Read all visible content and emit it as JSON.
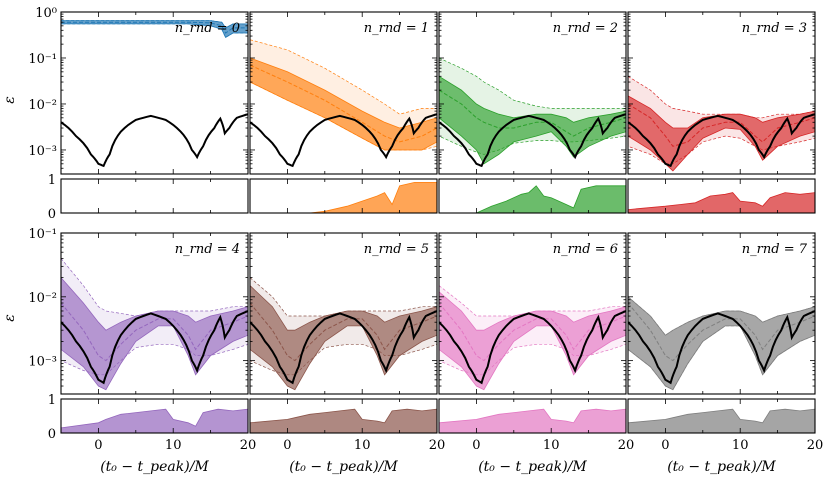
{
  "figure": {
    "ylabel_main": "ε",
    "xlabel": "(t₀ − t_peak)/M",
    "x_tick_labels": [
      "0",
      "10",
      "20"
    ],
    "top_row_y_ticks": [
      "10⁰",
      "10⁻¹",
      "10⁻²",
      "10⁻³"
    ],
    "bottom_row_y_ticks": [
      "10⁻¹",
      "10⁻²",
      "10⁻³"
    ],
    "sub_y_ticks": [
      "1",
      "0"
    ]
  },
  "chart_data": {
    "type": "line",
    "x_range": [
      -5,
      20
    ],
    "y_scale": "log",
    "top_row_ylim": [
      0.0003,
      1
    ],
    "bottom_row_ylim": [
      0.0003,
      0.1
    ],
    "sub_ylim": [
      0,
      1
    ],
    "reference_curve": {
      "name": "black",
      "x": [
        -5,
        -3,
        -1,
        0,
        0.7,
        1.5,
        3,
        5,
        7,
        9,
        11,
        12.5,
        13.2,
        14,
        15.5,
        16.3,
        16.9,
        17.5,
        18.5,
        20
      ],
      "y": [
        0.004,
        0.002,
        0.0008,
        0.0005,
        0.00045,
        0.0008,
        0.0025,
        0.0045,
        0.0055,
        0.0045,
        0.0025,
        0.001,
        0.0007,
        0.0012,
        0.003,
        0.0048,
        0.0023,
        0.003,
        0.005,
        0.006
      ]
    },
    "panels": [
      {
        "label": "n_rnd = 0",
        "color": "#1f77b4",
        "x": [
          -5,
          -2,
          3,
          8,
          12,
          15,
          16.5,
          17,
          18,
          20
        ],
        "median": [
          0.6,
          0.6,
          0.6,
          0.6,
          0.6,
          0.58,
          0.5,
          0.35,
          0.45,
          0.45
        ],
        "band_low": [
          0.55,
          0.55,
          0.55,
          0.55,
          0.55,
          0.5,
          0.42,
          0.28,
          0.35,
          0.35
        ],
        "band_high": [
          0.65,
          0.65,
          0.65,
          0.65,
          0.65,
          0.65,
          0.6,
          0.45,
          0.55,
          0.55
        ],
        "outer_low": [
          0.55,
          0.55,
          0.55,
          0.55,
          0.55,
          0.5,
          0.42,
          0.28,
          0.35,
          0.35
        ],
        "outer_high": [
          0.65,
          0.65,
          0.65,
          0.65,
          0.65,
          0.65,
          0.6,
          0.45,
          0.55,
          0.55
        ],
        "fraction_x": [],
        "fraction": []
      },
      {
        "label": "n_rnd = 1",
        "color": "#ff7f0e",
        "x": [
          -5,
          0,
          5,
          10,
          13,
          15,
          18,
          20
        ],
        "median": [
          0.07,
          0.03,
          0.012,
          0.004,
          0.002,
          0.0015,
          0.002,
          0.003
        ],
        "band_low": [
          0.03,
          0.012,
          0.005,
          0.0018,
          0.001,
          0.001,
          0.001,
          0.0015
        ],
        "band_high": [
          0.1,
          0.05,
          0.02,
          0.007,
          0.004,
          0.003,
          0.004,
          0.005
        ],
        "outer_low": [
          0.03,
          0.012,
          0.005,
          0.0018,
          0.001,
          0.001,
          0.001,
          0.0012
        ],
        "outer_high": [
          0.25,
          0.15,
          0.06,
          0.02,
          0.01,
          0.006,
          0.008,
          0.008
        ],
        "fraction_x": [
          -5,
          3,
          5,
          8,
          10,
          12,
          13,
          14,
          15,
          17,
          18,
          20
        ],
        "fraction": [
          0,
          0,
          0.05,
          0.2,
          0.35,
          0.5,
          0.6,
          0.25,
          0.8,
          0.9,
          0.9,
          0.9
        ]
      },
      {
        "label": "n_rnd = 2",
        "color": "#2ca02c",
        "x": [
          -5,
          -2,
          0,
          1,
          3,
          5,
          8,
          10,
          12,
          13,
          15,
          18,
          20
        ],
        "median": [
          0.02,
          0.01,
          0.005,
          0.004,
          0.003,
          0.003,
          0.004,
          0.004,
          0.0025,
          0.002,
          0.003,
          0.004,
          0.005
        ],
        "band_low": [
          0.005,
          0.002,
          0.001,
          0.0005,
          0.0008,
          0.0015,
          0.002,
          0.0025,
          0.0012,
          0.0007,
          0.0012,
          0.002,
          0.0025
        ],
        "band_high": [
          0.04,
          0.02,
          0.01,
          0.008,
          0.006,
          0.005,
          0.006,
          0.006,
          0.005,
          0.004,
          0.005,
          0.006,
          0.007
        ],
        "outer_low": [
          0.002,
          0.0012,
          0.0009,
          0.0008,
          0.001,
          0.0014,
          0.0016,
          0.0016,
          0.0015,
          0.0015,
          0.0016,
          0.0018,
          0.002
        ],
        "outer_high": [
          0.1,
          0.06,
          0.04,
          0.03,
          0.02,
          0.012,
          0.009,
          0.008,
          0.008,
          0.008,
          0.008,
          0.008,
          0.008
        ],
        "fraction_x": [
          -5,
          0,
          2,
          4,
          6,
          7,
          8,
          9,
          10,
          12,
          13,
          14,
          16,
          18,
          20
        ],
        "fraction": [
          0,
          0,
          0.2,
          0.35,
          0.55,
          0.6,
          0.8,
          0.5,
          0.45,
          0.25,
          0.15,
          0.7,
          0.8,
          0.8,
          0.8
        ]
      },
      {
        "label": "n_rnd = 3",
        "color": "#d62728",
        "x": [
          -5,
          -2,
          0,
          1,
          3,
          5,
          8,
          10,
          12,
          13,
          15,
          18,
          20
        ],
        "median": [
          0.01,
          0.005,
          0.002,
          0.0012,
          0.0015,
          0.003,
          0.004,
          0.004,
          0.002,
          0.0015,
          0.003,
          0.004,
          0.005
        ],
        "band_low": [
          0.002,
          0.001,
          0.0005,
          0.00035,
          0.0008,
          0.0018,
          0.003,
          0.0028,
          0.0012,
          0.0006,
          0.0012,
          0.002,
          0.0025
        ],
        "band_high": [
          0.015,
          0.008,
          0.004,
          0.003,
          0.003,
          0.005,
          0.006,
          0.006,
          0.005,
          0.004,
          0.005,
          0.006,
          0.007
        ],
        "outer_low": [
          0.0012,
          0.0008,
          0.0005,
          0.0005,
          0.0008,
          0.0015,
          0.002,
          0.0018,
          0.0012,
          0.001,
          0.0012,
          0.0015,
          0.0018
        ],
        "outer_high": [
          0.04,
          0.02,
          0.01,
          0.008,
          0.007,
          0.006,
          0.006,
          0.006,
          0.005,
          0.005,
          0.006,
          0.006,
          0.007
        ],
        "fraction_x": [
          -5,
          0,
          2,
          4,
          5,
          6,
          8,
          9,
          10,
          12,
          13,
          14,
          16,
          18,
          20
        ],
        "fraction": [
          0.1,
          0.2,
          0.25,
          0.3,
          0.4,
          0.5,
          0.55,
          0.6,
          0.35,
          0.3,
          0.2,
          0.45,
          0.6,
          0.55,
          0.6
        ]
      },
      {
        "label": "n_rnd = 4",
        "color": "#9467bd",
        "x": [
          -5,
          -2,
          0,
          1,
          3,
          5,
          8,
          10,
          12,
          13,
          15,
          18,
          20
        ],
        "median": [
          0.008,
          0.003,
          0.0012,
          0.001,
          0.0018,
          0.003,
          0.0045,
          0.0045,
          0.0025,
          0.0015,
          0.003,
          0.004,
          0.005
        ],
        "band_low": [
          0.0015,
          0.0008,
          0.0004,
          0.00035,
          0.0009,
          0.002,
          0.0035,
          0.0035,
          0.0012,
          0.0006,
          0.0012,
          0.002,
          0.0025
        ],
        "band_high": [
          0.02,
          0.008,
          0.004,
          0.003,
          0.004,
          0.005,
          0.006,
          0.006,
          0.005,
          0.004,
          0.005,
          0.006,
          0.007
        ],
        "outer_low": [
          0.001,
          0.0007,
          0.0006,
          0.0006,
          0.001,
          0.0016,
          0.0018,
          0.0018,
          0.0015,
          0.0012,
          0.0012,
          0.0015,
          0.0018
        ],
        "outer_high": [
          0.04,
          0.015,
          0.007,
          0.006,
          0.0055,
          0.005,
          0.006,
          0.006,
          0.006,
          0.006,
          0.006,
          0.007,
          0.007
        ],
        "fraction_x": [
          -5,
          0,
          1,
          3,
          5,
          7,
          9,
          10,
          12,
          13,
          14,
          16,
          18,
          20
        ],
        "fraction": [
          0.15,
          0.3,
          0.4,
          0.55,
          0.6,
          0.65,
          0.7,
          0.4,
          0.3,
          0.2,
          0.6,
          0.7,
          0.65,
          0.7
        ]
      },
      {
        "label": "n_rnd = 5",
        "color": "#8c564b",
        "x": [
          -5,
          -2,
          0,
          1,
          3,
          5,
          8,
          10,
          12,
          13,
          15,
          18,
          20
        ],
        "median": [
          0.008,
          0.003,
          0.0012,
          0.001,
          0.0018,
          0.003,
          0.0045,
          0.0045,
          0.0025,
          0.0015,
          0.003,
          0.004,
          0.005
        ],
        "band_low": [
          0.0015,
          0.0008,
          0.0004,
          0.00035,
          0.0009,
          0.002,
          0.0035,
          0.0035,
          0.0012,
          0.0006,
          0.0012,
          0.002,
          0.0025
        ],
        "band_high": [
          0.015,
          0.007,
          0.003,
          0.003,
          0.004,
          0.005,
          0.006,
          0.006,
          0.005,
          0.004,
          0.005,
          0.006,
          0.007
        ],
        "outer_low": [
          0.001,
          0.0007,
          0.0006,
          0.0006,
          0.001,
          0.0016,
          0.0018,
          0.0018,
          0.0015,
          0.0012,
          0.0012,
          0.0015,
          0.0018
        ],
        "outer_high": [
          0.02,
          0.01,
          0.005,
          0.005,
          0.005,
          0.005,
          0.006,
          0.006,
          0.006,
          0.006,
          0.006,
          0.007,
          0.007
        ],
        "fraction_x": [
          -5,
          0,
          1,
          3,
          5,
          7,
          9,
          10,
          12,
          13,
          14,
          16,
          18,
          20
        ],
        "fraction": [
          0.3,
          0.4,
          0.45,
          0.55,
          0.6,
          0.65,
          0.7,
          0.4,
          0.35,
          0.3,
          0.65,
          0.7,
          0.65,
          0.7
        ]
      },
      {
        "label": "n_rnd = 6",
        "color": "#e377c2",
        "x": [
          -5,
          -2,
          0,
          1,
          3,
          5,
          8,
          10,
          12,
          13,
          15,
          18,
          20
        ],
        "median": [
          0.008,
          0.003,
          0.0012,
          0.001,
          0.0018,
          0.003,
          0.0045,
          0.0045,
          0.0025,
          0.0015,
          0.003,
          0.004,
          0.005
        ],
        "band_low": [
          0.0015,
          0.0008,
          0.0004,
          0.00035,
          0.0009,
          0.002,
          0.0035,
          0.0035,
          0.0012,
          0.0006,
          0.0012,
          0.002,
          0.0025
        ],
        "band_high": [
          0.012,
          0.006,
          0.003,
          0.003,
          0.004,
          0.005,
          0.006,
          0.006,
          0.005,
          0.004,
          0.005,
          0.006,
          0.007
        ],
        "outer_low": [
          0.001,
          0.0007,
          0.0006,
          0.0006,
          0.001,
          0.0016,
          0.0018,
          0.0018,
          0.0015,
          0.0012,
          0.0012,
          0.0015,
          0.0018
        ],
        "outer_high": [
          0.015,
          0.008,
          0.005,
          0.005,
          0.005,
          0.005,
          0.006,
          0.006,
          0.006,
          0.006,
          0.006,
          0.007,
          0.007
        ],
        "fraction_x": [
          -5,
          0,
          1,
          3,
          5,
          7,
          9,
          10,
          12,
          13,
          14,
          16,
          18,
          20
        ],
        "fraction": [
          0.3,
          0.4,
          0.45,
          0.55,
          0.6,
          0.65,
          0.7,
          0.4,
          0.35,
          0.3,
          0.65,
          0.7,
          0.65,
          0.7
        ]
      },
      {
        "label": "n_rnd = 7",
        "color": "#7f7f7f",
        "x": [
          -5,
          -2,
          0,
          1,
          3,
          5,
          8,
          10,
          12,
          13,
          15,
          18,
          20
        ],
        "median": [
          0.008,
          0.003,
          0.0012,
          0.001,
          0.0018,
          0.003,
          0.0045,
          0.0045,
          0.0025,
          0.0015,
          0.003,
          0.004,
          0.005
        ],
        "band_low": [
          0.0015,
          0.0008,
          0.0004,
          0.00035,
          0.0009,
          0.002,
          0.0035,
          0.0035,
          0.0012,
          0.0006,
          0.0012,
          0.002,
          0.0025
        ],
        "band_high": [
          0.01,
          0.005,
          0.0025,
          0.003,
          0.004,
          0.005,
          0.006,
          0.006,
          0.005,
          0.004,
          0.005,
          0.006,
          0.007
        ],
        "outer_low": [
          0.0015,
          0.0008,
          0.0004,
          0.00035,
          0.0009,
          0.002,
          0.0035,
          0.0035,
          0.0012,
          0.0006,
          0.0012,
          0.002,
          0.0025
        ],
        "outer_high": [
          0.01,
          0.005,
          0.0025,
          0.003,
          0.004,
          0.005,
          0.006,
          0.006,
          0.005,
          0.004,
          0.005,
          0.006,
          0.007
        ],
        "fraction_x": [
          -5,
          0,
          1,
          3,
          5,
          7,
          9,
          10,
          12,
          13,
          14,
          16,
          18,
          20
        ],
        "fraction": [
          0.3,
          0.4,
          0.45,
          0.55,
          0.6,
          0.65,
          0.7,
          0.4,
          0.35,
          0.3,
          0.65,
          0.7,
          0.65,
          0.7
        ]
      }
    ]
  }
}
